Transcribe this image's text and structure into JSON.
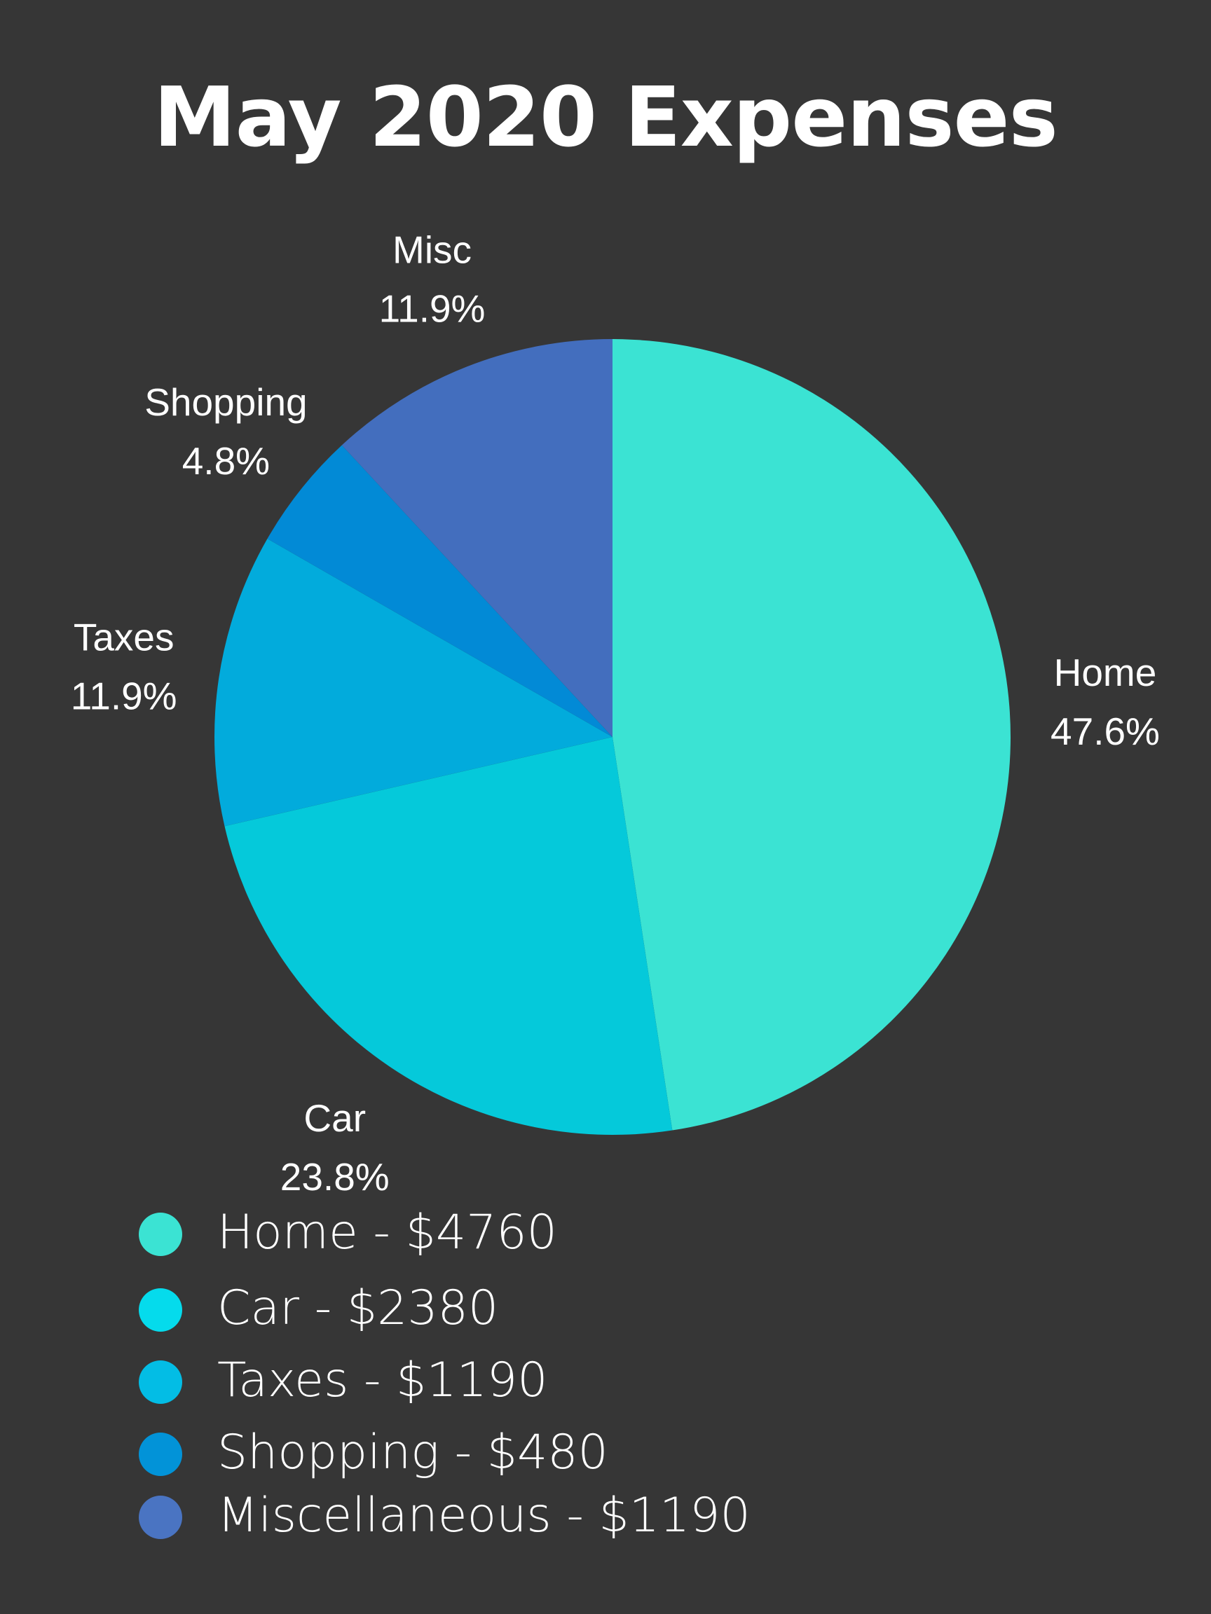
{
  "chart_data": {
    "type": "pie",
    "title": "May 2020 Expenses",
    "slices": [
      {
        "label": "Home",
        "percent_label": "47.6%",
        "value": 4760,
        "color": "#3be3d3"
      },
      {
        "label": "Car",
        "percent_label": "23.8%",
        "value": 2380,
        "color": "#05c9da"
      },
      {
        "label": "Taxes",
        "percent_label": "11.9%",
        "value": 1190,
        "color": "#02abdc"
      },
      {
        "label": "Shopping",
        "percent_label": "4.8%",
        "value": 480,
        "color": "#028ad6"
      },
      {
        "label": "Misc",
        "percent_label": "11.9%",
        "value": 1190,
        "color": "#436ebe"
      }
    ],
    "legend": [
      {
        "text": "Home - $4760",
        "color": "#3be3d3"
      },
      {
        "text": "Car - $2380",
        "color": "#05dbec"
      },
      {
        "text": "Taxes - $1190",
        "color": "#03bde5"
      },
      {
        "text": "Shopping - $480",
        "color": "#0293d8"
      },
      {
        "text": "Miscellaneous - $1190",
        "color": "#4a74c2"
      }
    ]
  }
}
